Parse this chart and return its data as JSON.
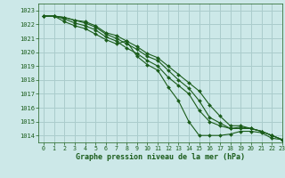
{
  "title": "Graphe pression niveau de la mer (hPa)",
  "background_color": "#cce8e8",
  "grid_color": "#aacccc",
  "line_color": "#1a5c1a",
  "xlim": [
    -0.5,
    23
  ],
  "ylim": [
    1013.5,
    1023.5
  ],
  "yticks": [
    1014,
    1015,
    1016,
    1017,
    1018,
    1019,
    1020,
    1021,
    1022,
    1023
  ],
  "xticks": [
    0,
    1,
    2,
    3,
    4,
    5,
    6,
    7,
    8,
    9,
    10,
    11,
    12,
    13,
    14,
    15,
    16,
    17,
    18,
    19,
    20,
    21,
    22,
    23
  ],
  "series": [
    [
      1022.6,
      1022.6,
      1022.2,
      1021.9,
      1021.7,
      1021.3,
      1020.9,
      1020.6,
      1020.8,
      1019.7,
      1019.1,
      1018.7,
      1017.5,
      1016.5,
      1015.0,
      1014.0,
      1014.0,
      1014.0,
      1014.1,
      1014.3,
      1014.3,
      1014.2,
      1013.8,
      1013.7
    ],
    [
      1022.6,
      1022.6,
      1022.4,
      1022.1,
      1021.9,
      1021.6,
      1021.1,
      1020.8,
      1020.3,
      1019.9,
      1019.4,
      1019.0,
      1018.2,
      1017.6,
      1017.0,
      1015.8,
      1015.0,
      1014.7,
      1014.5,
      1014.5,
      1014.5,
      1014.3,
      1014.0,
      1013.7
    ],
    [
      1022.6,
      1022.6,
      1022.5,
      1022.3,
      1022.1,
      1021.8,
      1021.3,
      1021.0,
      1020.6,
      1020.2,
      1019.7,
      1019.4,
      1018.7,
      1018.0,
      1017.4,
      1016.5,
      1015.3,
      1014.9,
      1014.5,
      1014.6,
      1014.5,
      1014.3,
      1014.0,
      1013.7
    ],
    [
      1022.6,
      1022.6,
      1022.5,
      1022.3,
      1022.2,
      1021.9,
      1021.4,
      1021.2,
      1020.8,
      1020.4,
      1019.9,
      1019.6,
      1019.0,
      1018.4,
      1017.8,
      1017.2,
      1016.2,
      1015.4,
      1014.7,
      1014.7,
      1014.5,
      1014.3,
      1014.0,
      1013.7
    ]
  ]
}
